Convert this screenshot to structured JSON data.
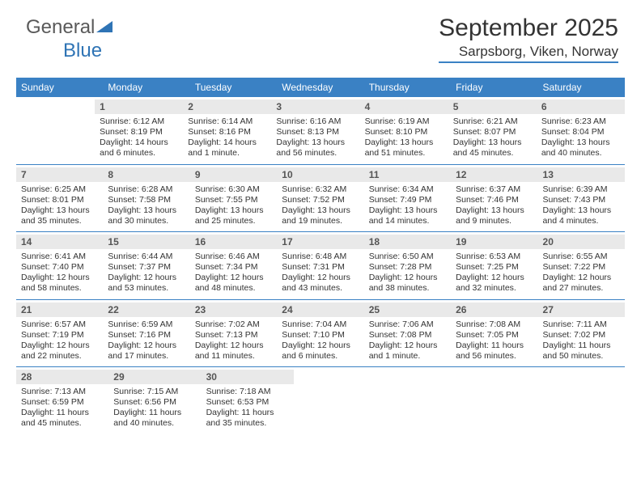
{
  "brand": {
    "name_part1": "General",
    "name_part2": "Blue"
  },
  "header": {
    "title": "September 2025",
    "location": "Sarpsborg, Viken, Norway"
  },
  "colors": {
    "header_blue": "#3a81c4",
    "row_divider": "#3a81c4",
    "daynum_bg": "#e9e9e9",
    "text": "#333333",
    "logo_gray": "#595959",
    "logo_blue": "#2f74b5",
    "background": "#ffffff"
  },
  "weekdays": [
    "Sunday",
    "Monday",
    "Tuesday",
    "Wednesday",
    "Thursday",
    "Friday",
    "Saturday"
  ],
  "weeks": [
    [
      null,
      {
        "num": "1",
        "sunrise": "Sunrise: 6:12 AM",
        "sunset": "Sunset: 8:19 PM",
        "daylight": "Daylight: 14 hours and 6 minutes."
      },
      {
        "num": "2",
        "sunrise": "Sunrise: 6:14 AM",
        "sunset": "Sunset: 8:16 PM",
        "daylight": "Daylight: 14 hours and 1 minute."
      },
      {
        "num": "3",
        "sunrise": "Sunrise: 6:16 AM",
        "sunset": "Sunset: 8:13 PM",
        "daylight": "Daylight: 13 hours and 56 minutes."
      },
      {
        "num": "4",
        "sunrise": "Sunrise: 6:19 AM",
        "sunset": "Sunset: 8:10 PM",
        "daylight": "Daylight: 13 hours and 51 minutes."
      },
      {
        "num": "5",
        "sunrise": "Sunrise: 6:21 AM",
        "sunset": "Sunset: 8:07 PM",
        "daylight": "Daylight: 13 hours and 45 minutes."
      },
      {
        "num": "6",
        "sunrise": "Sunrise: 6:23 AM",
        "sunset": "Sunset: 8:04 PM",
        "daylight": "Daylight: 13 hours and 40 minutes."
      }
    ],
    [
      {
        "num": "7",
        "sunrise": "Sunrise: 6:25 AM",
        "sunset": "Sunset: 8:01 PM",
        "daylight": "Daylight: 13 hours and 35 minutes."
      },
      {
        "num": "8",
        "sunrise": "Sunrise: 6:28 AM",
        "sunset": "Sunset: 7:58 PM",
        "daylight": "Daylight: 13 hours and 30 minutes."
      },
      {
        "num": "9",
        "sunrise": "Sunrise: 6:30 AM",
        "sunset": "Sunset: 7:55 PM",
        "daylight": "Daylight: 13 hours and 25 minutes."
      },
      {
        "num": "10",
        "sunrise": "Sunrise: 6:32 AM",
        "sunset": "Sunset: 7:52 PM",
        "daylight": "Daylight: 13 hours and 19 minutes."
      },
      {
        "num": "11",
        "sunrise": "Sunrise: 6:34 AM",
        "sunset": "Sunset: 7:49 PM",
        "daylight": "Daylight: 13 hours and 14 minutes."
      },
      {
        "num": "12",
        "sunrise": "Sunrise: 6:37 AM",
        "sunset": "Sunset: 7:46 PM",
        "daylight": "Daylight: 13 hours and 9 minutes."
      },
      {
        "num": "13",
        "sunrise": "Sunrise: 6:39 AM",
        "sunset": "Sunset: 7:43 PM",
        "daylight": "Daylight: 13 hours and 4 minutes."
      }
    ],
    [
      {
        "num": "14",
        "sunrise": "Sunrise: 6:41 AM",
        "sunset": "Sunset: 7:40 PM",
        "daylight": "Daylight: 12 hours and 58 minutes."
      },
      {
        "num": "15",
        "sunrise": "Sunrise: 6:44 AM",
        "sunset": "Sunset: 7:37 PM",
        "daylight": "Daylight: 12 hours and 53 minutes."
      },
      {
        "num": "16",
        "sunrise": "Sunrise: 6:46 AM",
        "sunset": "Sunset: 7:34 PM",
        "daylight": "Daylight: 12 hours and 48 minutes."
      },
      {
        "num": "17",
        "sunrise": "Sunrise: 6:48 AM",
        "sunset": "Sunset: 7:31 PM",
        "daylight": "Daylight: 12 hours and 43 minutes."
      },
      {
        "num": "18",
        "sunrise": "Sunrise: 6:50 AM",
        "sunset": "Sunset: 7:28 PM",
        "daylight": "Daylight: 12 hours and 38 minutes."
      },
      {
        "num": "19",
        "sunrise": "Sunrise: 6:53 AM",
        "sunset": "Sunset: 7:25 PM",
        "daylight": "Daylight: 12 hours and 32 minutes."
      },
      {
        "num": "20",
        "sunrise": "Sunrise: 6:55 AM",
        "sunset": "Sunset: 7:22 PM",
        "daylight": "Daylight: 12 hours and 27 minutes."
      }
    ],
    [
      {
        "num": "21",
        "sunrise": "Sunrise: 6:57 AM",
        "sunset": "Sunset: 7:19 PM",
        "daylight": "Daylight: 12 hours and 22 minutes."
      },
      {
        "num": "22",
        "sunrise": "Sunrise: 6:59 AM",
        "sunset": "Sunset: 7:16 PM",
        "daylight": "Daylight: 12 hours and 17 minutes."
      },
      {
        "num": "23",
        "sunrise": "Sunrise: 7:02 AM",
        "sunset": "Sunset: 7:13 PM",
        "daylight": "Daylight: 12 hours and 11 minutes."
      },
      {
        "num": "24",
        "sunrise": "Sunrise: 7:04 AM",
        "sunset": "Sunset: 7:10 PM",
        "daylight": "Daylight: 12 hours and 6 minutes."
      },
      {
        "num": "25",
        "sunrise": "Sunrise: 7:06 AM",
        "sunset": "Sunset: 7:08 PM",
        "daylight": "Daylight: 12 hours and 1 minute."
      },
      {
        "num": "26",
        "sunrise": "Sunrise: 7:08 AM",
        "sunset": "Sunset: 7:05 PM",
        "daylight": "Daylight: 11 hours and 56 minutes."
      },
      {
        "num": "27",
        "sunrise": "Sunrise: 7:11 AM",
        "sunset": "Sunset: 7:02 PM",
        "daylight": "Daylight: 11 hours and 50 minutes."
      }
    ],
    [
      {
        "num": "28",
        "sunrise": "Sunrise: 7:13 AM",
        "sunset": "Sunset: 6:59 PM",
        "daylight": "Daylight: 11 hours and 45 minutes."
      },
      {
        "num": "29",
        "sunrise": "Sunrise: 7:15 AM",
        "sunset": "Sunset: 6:56 PM",
        "daylight": "Daylight: 11 hours and 40 minutes."
      },
      {
        "num": "30",
        "sunrise": "Sunrise: 7:18 AM",
        "sunset": "Sunset: 6:53 PM",
        "daylight": "Daylight: 11 hours and 35 minutes."
      },
      null,
      null,
      null,
      null
    ]
  ]
}
